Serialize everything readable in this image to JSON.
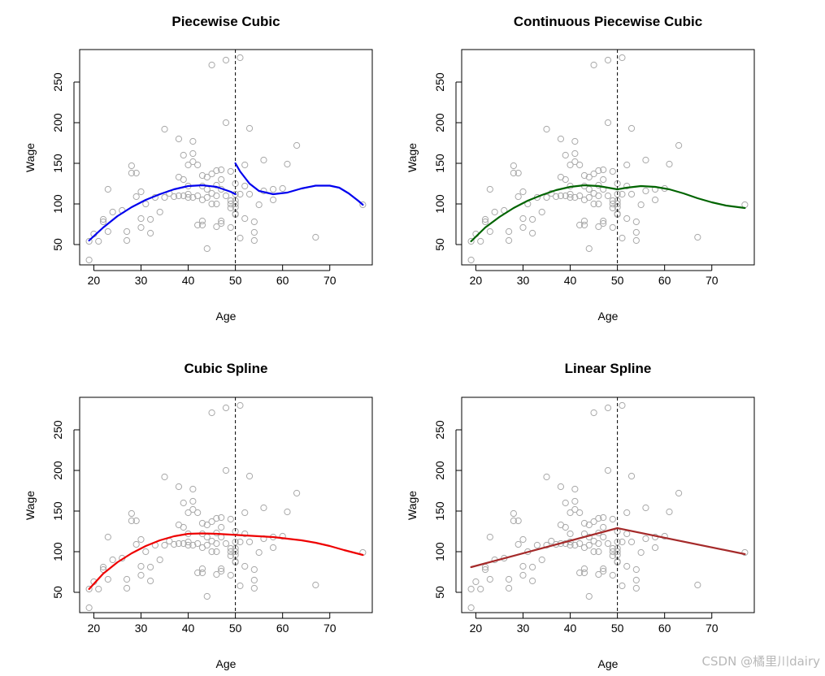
{
  "watermark": "CSDN @橘里川dairy",
  "colors": {
    "points": "#a8a8a8",
    "knot": "#000000",
    "panel0": "#0000ee",
    "panel1": "#006400",
    "panel2": "#ee0000",
    "panel3": "#a52a2a"
  },
  "chart_data": [
    {
      "type": "scatter",
      "title": "Piecewise Cubic",
      "xlabel": "Age",
      "ylabel": "Wage",
      "xlim": [
        17,
        79
      ],
      "ylim": [
        25,
        290
      ],
      "xticks": [
        20,
        30,
        40,
        50,
        60,
        70
      ],
      "yticks": [
        50,
        100,
        150,
        200,
        250
      ],
      "knot": 50,
      "fit_color_key": "panel0",
      "fit_segments": [
        [
          [
            19,
            55
          ],
          [
            22,
            71
          ],
          [
            25,
            85
          ],
          [
            28,
            96
          ],
          [
            31,
            105
          ],
          [
            34,
            112
          ],
          [
            37,
            118
          ],
          [
            40,
            122
          ],
          [
            43,
            123
          ],
          [
            46,
            121
          ],
          [
            49,
            115
          ],
          [
            50,
            112
          ]
        ],
        [
          [
            50,
            150
          ],
          [
            51,
            140
          ],
          [
            53,
            125
          ],
          [
            55,
            116
          ],
          [
            58,
            112
          ],
          [
            61,
            114
          ],
          [
            64,
            119
          ],
          [
            67,
            122.5
          ],
          [
            70,
            122.5
          ],
          [
            72,
            120
          ],
          [
            74,
            113
          ],
          [
            76,
            104
          ],
          [
            77,
            99
          ]
        ]
      ]
    },
    {
      "type": "scatter",
      "title": "Continuous Piecewise Cubic",
      "xlabel": "Age",
      "ylabel": "Wage",
      "xlim": [
        17,
        79
      ],
      "ylim": [
        25,
        290
      ],
      "xticks": [
        20,
        30,
        40,
        50,
        60,
        70
      ],
      "yticks": [
        50,
        100,
        150,
        200,
        250
      ],
      "knot": 50,
      "fit_color_key": "panel1",
      "fit_segments": [
        [
          [
            19,
            54
          ],
          [
            22,
            71
          ],
          [
            25,
            84
          ],
          [
            28,
            95
          ],
          [
            31,
            104
          ],
          [
            34,
            111
          ],
          [
            37,
            117
          ],
          [
            40,
            121
          ],
          [
            43,
            123
          ],
          [
            46,
            122
          ],
          [
            49,
            119
          ],
          [
            50,
            118
          ],
          [
            52,
            120
          ],
          [
            55,
            122
          ],
          [
            58,
            121
          ],
          [
            61,
            118
          ],
          [
            64,
            113
          ],
          [
            67,
            107
          ],
          [
            70,
            102
          ],
          [
            73,
            98
          ],
          [
            77,
            95
          ]
        ]
      ]
    },
    {
      "type": "scatter",
      "title": "Cubic Spline",
      "xlabel": "Age",
      "ylabel": "Wage",
      "xlim": [
        17,
        79
      ],
      "ylim": [
        25,
        290
      ],
      "xticks": [
        20,
        30,
        40,
        50,
        60,
        70
      ],
      "yticks": [
        50,
        100,
        150,
        200,
        250
      ],
      "knot": 50,
      "fit_color_key": "panel2",
      "fit_segments": [
        [
          [
            19,
            54
          ],
          [
            22,
            73
          ],
          [
            25,
            87
          ],
          [
            28,
            98
          ],
          [
            31,
            107
          ],
          [
            34,
            114
          ],
          [
            37,
            119
          ],
          [
            40,
            122
          ],
          [
            43,
            122.5
          ],
          [
            46,
            122
          ],
          [
            49,
            121
          ],
          [
            52,
            120
          ],
          [
            55,
            119
          ],
          [
            58,
            118
          ],
          [
            61,
            116
          ],
          [
            64,
            114
          ],
          [
            67,
            111
          ],
          [
            70,
            107
          ],
          [
            73,
            102
          ],
          [
            77,
            96
          ]
        ]
      ]
    },
    {
      "type": "scatter",
      "title": "Linear Spline",
      "xlabel": "Age",
      "ylabel": "Wage",
      "xlim": [
        17,
        79
      ],
      "ylim": [
        25,
        290
      ],
      "xticks": [
        20,
        30,
        40,
        50,
        60,
        70
      ],
      "yticks": [
        50,
        100,
        150,
        200,
        250
      ],
      "knot": 50,
      "fit_color_key": "panel3",
      "fit_segments": [
        [
          [
            19,
            81
          ],
          [
            50,
            129
          ],
          [
            77,
            97
          ]
        ]
      ]
    }
  ],
  "points": [
    [
      19,
      54
    ],
    [
      19,
      31
    ],
    [
      20,
      63
    ],
    [
      21,
      54
    ],
    [
      22,
      78
    ],
    [
      22,
      81
    ],
    [
      23,
      66
    ],
    [
      23,
      118
    ],
    [
      24,
      90
    ],
    [
      26,
      92
    ],
    [
      27,
      66
    ],
    [
      27,
      55
    ],
    [
      28,
      147
    ],
    [
      28,
      138
    ],
    [
      29,
      109
    ],
    [
      29,
      138
    ],
    [
      30,
      115
    ],
    [
      30,
      71
    ],
    [
      30,
      82
    ],
    [
      31,
      100
    ],
    [
      32,
      81
    ],
    [
      32,
      64
    ],
    [
      33,
      108
    ],
    [
      34,
      90
    ],
    [
      35,
      192
    ],
    [
      35,
      108
    ],
    [
      36,
      113
    ],
    [
      37,
      109
    ],
    [
      38,
      133
    ],
    [
      38,
      110
    ],
    [
      38,
      180
    ],
    [
      39,
      110
    ],
    [
      39,
      160
    ],
    [
      39,
      130
    ],
    [
      40,
      148
    ],
    [
      40,
      108
    ],
    [
      40,
      122
    ],
    [
      40,
      112
    ],
    [
      41,
      152
    ],
    [
      41,
      177
    ],
    [
      41,
      162
    ],
    [
      41,
      108
    ],
    [
      42,
      74
    ],
    [
      42,
      110
    ],
    [
      42,
      148
    ],
    [
      43,
      122
    ],
    [
      43,
      105
    ],
    [
      43,
      79
    ],
    [
      43,
      74
    ],
    [
      43,
      135
    ],
    [
      44,
      45
    ],
    [
      44,
      108
    ],
    [
      44,
      133
    ],
    [
      44,
      118
    ],
    [
      45,
      137
    ],
    [
      45,
      271
    ],
    [
      45,
      100
    ],
    [
      45,
      113
    ],
    [
      46,
      123
    ],
    [
      46,
      141
    ],
    [
      46,
      110
    ],
    [
      46,
      72
    ],
    [
      46,
      100
    ],
    [
      47,
      142
    ],
    [
      47,
      76
    ],
    [
      47,
      118
    ],
    [
      47,
      130
    ],
    [
      47,
      79
    ],
    [
      48,
      277
    ],
    [
      48,
      200
    ],
    [
      48,
      110
    ],
    [
      49,
      104
    ],
    [
      49,
      140
    ],
    [
      49,
      95
    ],
    [
      49,
      100
    ],
    [
      49,
      71
    ],
    [
      50,
      88
    ],
    [
      50,
      112
    ],
    [
      50,
      96
    ],
    [
      50,
      87
    ],
    [
      50,
      104
    ],
    [
      50,
      125
    ],
    [
      50,
      100
    ],
    [
      51,
      280
    ],
    [
      51,
      58
    ],
    [
      51,
      112
    ],
    [
      52,
      148
    ],
    [
      52,
      122
    ],
    [
      52,
      82
    ],
    [
      53,
      193
    ],
    [
      53,
      112
    ],
    [
      54,
      78
    ],
    [
      54,
      65
    ],
    [
      54,
      55
    ],
    [
      55,
      99
    ],
    [
      56,
      116
    ],
    [
      56,
      154
    ],
    [
      58,
      118
    ],
    [
      58,
      105
    ],
    [
      60,
      119
    ],
    [
      61,
      149
    ],
    [
      63,
      172
    ],
    [
      67,
      59
    ],
    [
      77,
      99
    ]
  ],
  "panel_bindings": [
    "Piecewise Cubic",
    "Continuous Piecewise Cubic",
    "Cubic Spline",
    "Linear Spline"
  ]
}
